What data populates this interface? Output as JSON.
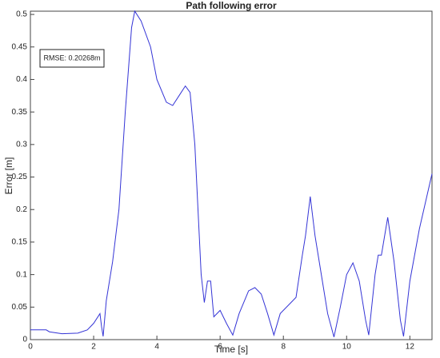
{
  "chart_data": {
    "type": "line",
    "title": "Path following error",
    "x_label": "Time [s]",
    "y_label": "Error [m]",
    "annotation": "RMSE: 0.20268m",
    "x": [
      0,
      0.5,
      0.6,
      1,
      1.5,
      1.8,
      2.0,
      2.2,
      2.25,
      2.3,
      2.4,
      2.6,
      2.8,
      3.0,
      3.2,
      3.3,
      3.5,
      3.8,
      4.0,
      4.3,
      4.5,
      4.7,
      4.9,
      5.05,
      5.2,
      5.3,
      5.4,
      5.5,
      5.6,
      5.7,
      5.8,
      6.0,
      6.2,
      6.4,
      6.6,
      6.9,
      7.1,
      7.3,
      7.5,
      7.7,
      7.9,
      8.2,
      8.4,
      8.6,
      8.7,
      8.85,
      9.0,
      9.2,
      9.4,
      9.6,
      9.8,
      10.0,
      10.2,
      10.4,
      10.6,
      10.7,
      10.9,
      11.0,
      11.1,
      11.3,
      11.5,
      11.7,
      11.8,
      12.0,
      12.3,
      12.7
    ],
    "series": [
      {
        "name": "Error",
        "color": "#3434d6",
        "values": [
          0.015,
          0.015,
          0.012,
          0.009,
          0.01,
          0.015,
          0.025,
          0.04,
          0.02,
          0.005,
          0.06,
          0.12,
          0.2,
          0.35,
          0.48,
          0.505,
          0.49,
          0.45,
          0.4,
          0.365,
          0.36,
          0.375,
          0.39,
          0.38,
          0.3,
          0.2,
          0.1,
          0.057,
          0.09,
          0.09,
          0.035,
          0.045,
          0.025,
          0.007,
          0.04,
          0.075,
          0.08,
          0.07,
          0.04,
          0.007,
          0.04,
          0.055,
          0.065,
          0.13,
          0.16,
          0.22,
          0.16,
          0.1,
          0.04,
          0.004,
          0.05,
          0.1,
          0.118,
          0.09,
          0.03,
          0.007,
          0.1,
          0.13,
          0.13,
          0.188,
          0.12,
          0.03,
          0.005,
          0.09,
          0.17,
          0.255
        ]
      }
    ],
    "xlim": [
      0,
      12.7
    ],
    "ylim": [
      0,
      0.505
    ],
    "xticks": [
      0,
      2,
      4,
      6,
      8,
      10,
      12
    ],
    "yticks": [
      0,
      0.05,
      0.1,
      0.15,
      0.2,
      0.25,
      0.3,
      0.35,
      0.4,
      0.45,
      0.5
    ]
  }
}
